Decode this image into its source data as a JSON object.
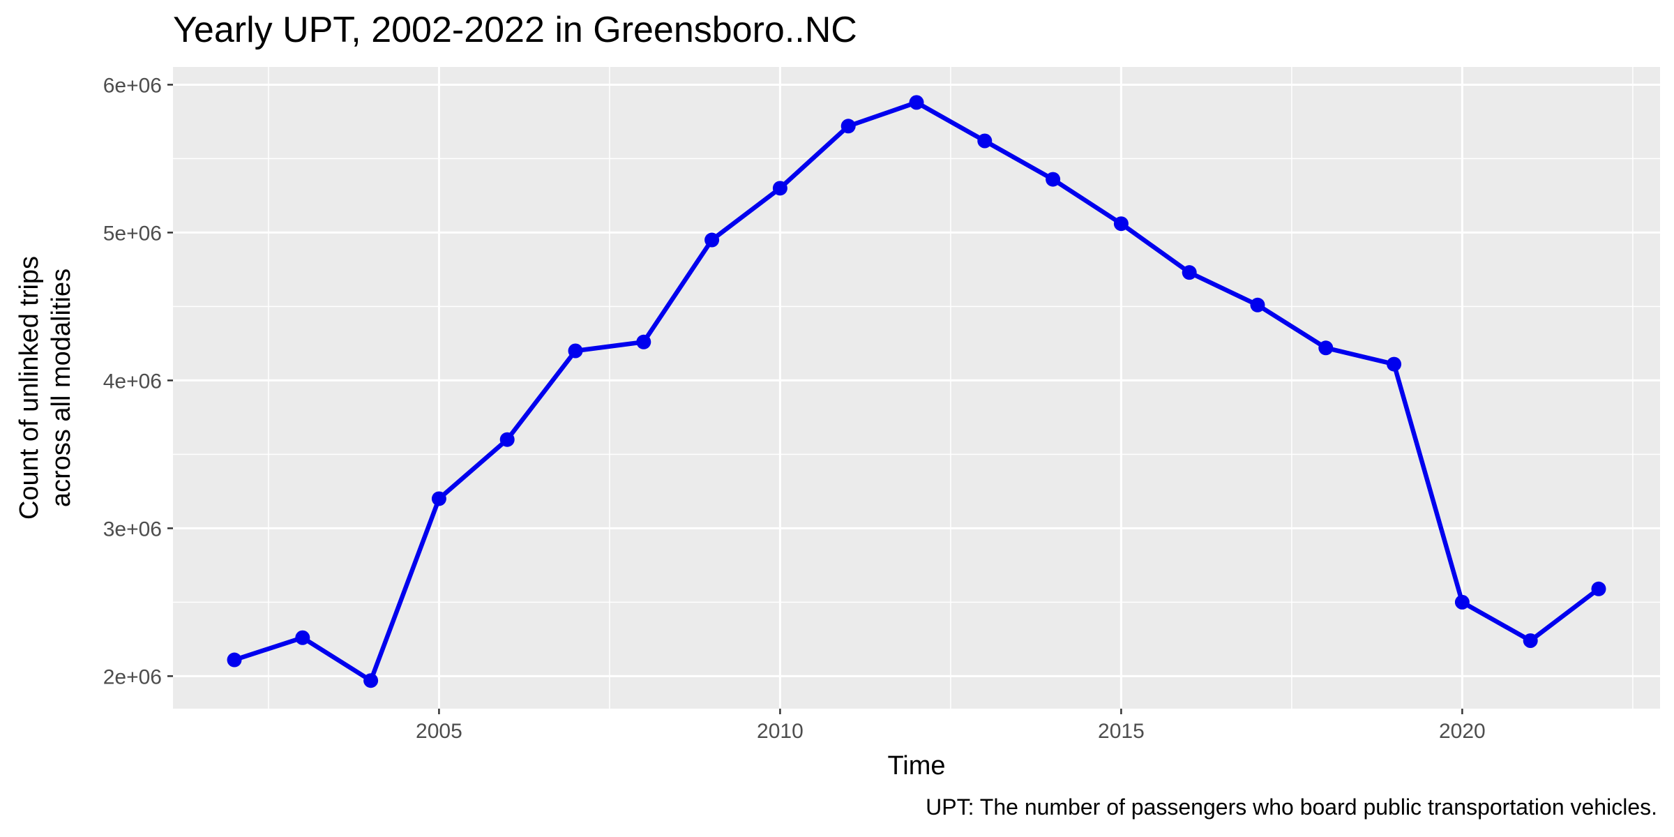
{
  "chart_data": {
    "type": "line",
    "title": "Yearly UPT, 2002-2022 in Greensboro..NC",
    "xlabel": "Time",
    "ylabel_lines": [
      "Count of unlinked trips",
      "across all modalities"
    ],
    "caption": "UPT: The number of passengers who board public transportation vehicles.",
    "xlim": [
      2001.1,
      2022.9
    ],
    "ylim": [
      1780000,
      6120000
    ],
    "x_ticks": [
      2005,
      2010,
      2015,
      2020
    ],
    "x_tick_labels": [
      "2005",
      "2010",
      "2015",
      "2020"
    ],
    "y_ticks": [
      2000000,
      3000000,
      4000000,
      5000000,
      6000000
    ],
    "y_tick_labels": [
      "2e+06",
      "3e+06",
      "4e+06",
      "5e+06",
      "6e+06"
    ],
    "grid": true,
    "series": [
      {
        "color": "#0000ee",
        "x": [
          2002,
          2003,
          2004,
          2005,
          2006,
          2007,
          2008,
          2009,
          2010,
          2011,
          2012,
          2013,
          2014,
          2015,
          2016,
          2017,
          2018,
          2019,
          2020,
          2021,
          2022
        ],
        "y": [
          2110000,
          2260000,
          1970000,
          3200000,
          3600000,
          4200000,
          4260000,
          4950000,
          5300000,
          5720000,
          5880000,
          5620000,
          5360000,
          5060000,
          4730000,
          4510000,
          4220000,
          4110000,
          2500000,
          2240000,
          2590000
        ]
      }
    ]
  }
}
